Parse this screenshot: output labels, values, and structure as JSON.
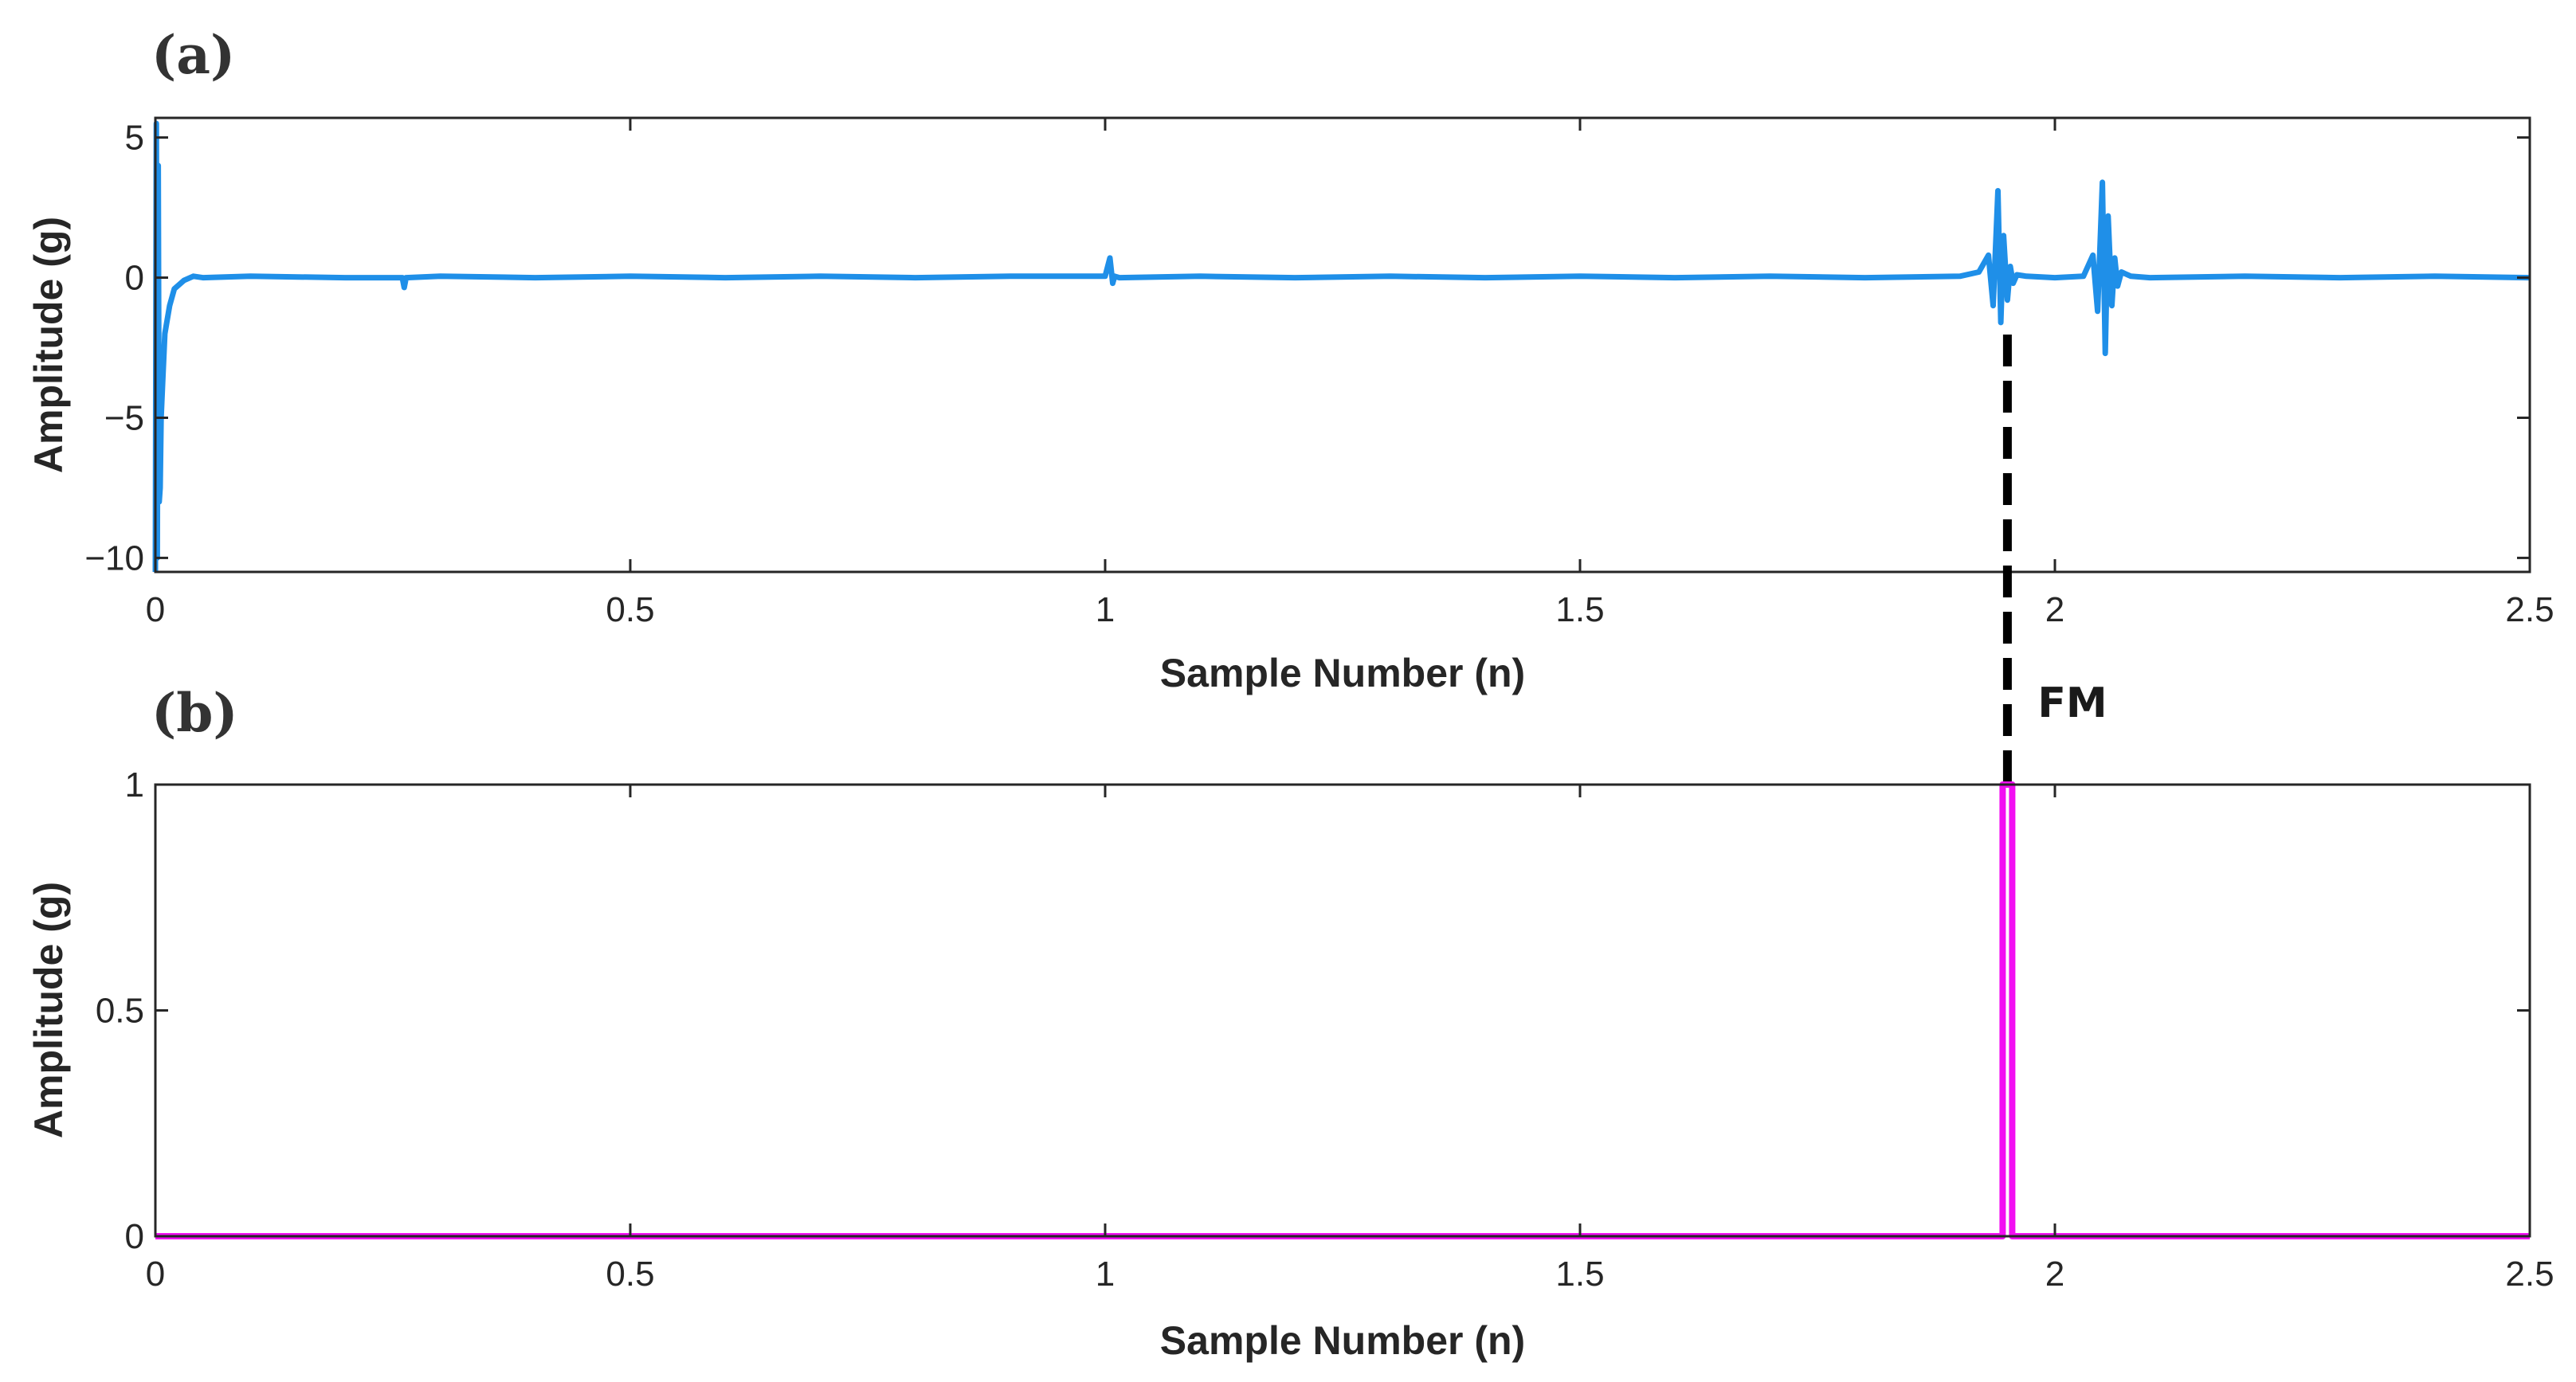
{
  "chart_data": [
    {
      "type": "line",
      "panel_label": "(a)",
      "xlabel": "Sample Number (n)",
      "ylabel": "Amplitude (g)",
      "xlim": [
        0,
        2.5
      ],
      "ylim": [
        -10.5,
        5.7
      ],
      "xticks": [
        "0",
        "0.5",
        "1",
        "1.5",
        "2",
        "2.5"
      ],
      "yticks": [
        "5",
        "0",
        "−5",
        "−10"
      ],
      "color": "#1f8fe8",
      "series": [
        {
          "x": [
            0,
            0.001,
            0.002,
            0.003,
            0.004,
            0.005,
            0.006,
            0.008,
            0.01,
            0.015,
            0.02,
            0.03,
            0.04,
            0.05,
            0.1,
            0.2,
            0.26,
            0.262,
            0.264,
            0.3,
            0.4,
            0.5,
            0.6,
            0.7,
            0.8,
            0.9,
            1.0,
            1.005,
            1.008,
            1.01,
            1.015,
            1.1,
            1.2,
            1.3,
            1.4,
            1.5,
            1.6,
            1.7,
            1.8,
            1.9,
            1.92,
            1.93,
            1.935,
            1.94,
            1.943,
            1.946,
            1.95,
            1.953,
            1.956,
            1.96,
            1.97,
            2.0,
            2.03,
            2.04,
            2.045,
            2.05,
            2.053,
            2.056,
            2.06,
            2.063,
            2.066,
            2.07,
            2.08,
            2.1,
            2.2,
            2.3,
            2.4,
            2.5
          ],
          "y": [
            -10.5,
            5.5,
            -10.0,
            4.0,
            -8.0,
            -7.5,
            -5.0,
            -3.5,
            -2.0,
            -1.0,
            -0.4,
            -0.1,
            0.05,
            0.0,
            0.05,
            0.0,
            0.0,
            -0.35,
            0.0,
            0.05,
            0.0,
            0.05,
            0.0,
            0.05,
            0.0,
            0.05,
            0.05,
            0.7,
            -0.2,
            0.05,
            0.0,
            0.05,
            0.0,
            0.05,
            0.0,
            0.05,
            0.0,
            0.05,
            0.0,
            0.05,
            0.2,
            0.8,
            -1.0,
            3.1,
            -1.6,
            1.5,
            -0.8,
            0.4,
            -0.2,
            0.1,
            0.05,
            0.0,
            0.05,
            0.8,
            -1.2,
            3.4,
            -2.7,
            2.2,
            -1.0,
            0.7,
            -0.3,
            0.2,
            0.05,
            0.0,
            0.05,
            0.0,
            0.05,
            0.0
          ]
        }
      ],
      "annotation": {
        "text": "FM",
        "x": 1.95,
        "style": "dashed vertical marker"
      }
    },
    {
      "type": "line",
      "panel_label": "(b)",
      "xlabel": "Sample Number (n)",
      "ylabel": "Amplitude (g)",
      "xlim": [
        0,
        2.5
      ],
      "ylim": [
        0,
        1
      ],
      "xticks": [
        "0",
        "0.5",
        "1",
        "1.5",
        "2",
        "2.5"
      ],
      "yticks": [
        "1",
        "0.5",
        "0"
      ],
      "color": "#f20ff2",
      "series": [
        {
          "x": [
            0,
            1.945,
            1.945,
            1.955,
            1.955,
            2.5
          ],
          "y": [
            0,
            0,
            1,
            1,
            0,
            0
          ]
        }
      ]
    }
  ]
}
